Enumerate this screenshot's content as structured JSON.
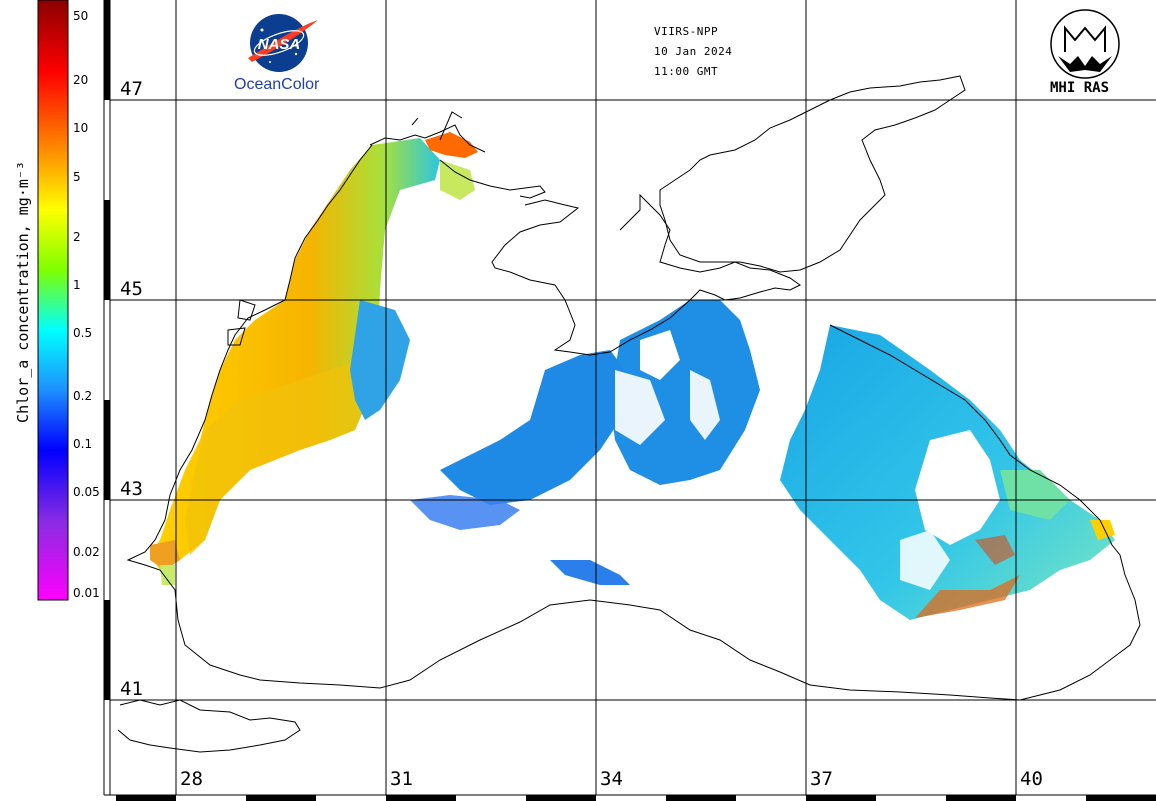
{
  "header": {
    "satellite": "VIIRS-NPP",
    "date": "10 Jan 2024",
    "time": "11:00 GMT"
  },
  "logos": {
    "nasa_wordmark": "NASA",
    "left": "OceanColor",
    "right": "MHI RAS"
  },
  "colorbar": {
    "title": "Chlor_a concentration, mg·m⁻³",
    "ticks": [
      "50",
      "20",
      "10",
      "5",
      "2",
      "1",
      "0.5",
      "0.2",
      "0.1",
      "0.05",
      "0.02",
      "0.01"
    ],
    "colors": [
      "#8b0000",
      "#ff0000",
      "#ff8c00",
      "#ffff00",
      "#7fff00",
      "#00ffff",
      "#1e90ff",
      "#0000ff",
      "#8a2be2",
      "#ff00ff"
    ]
  },
  "grid": {
    "latitudes": [
      "47",
      "45",
      "43",
      "41"
    ],
    "longitudes": [
      "28",
      "31",
      "34",
      "37",
      "40"
    ]
  },
  "map": {
    "land_color": "#ffffff",
    "coast_color": "#000000",
    "bloom_colors": {
      "high": "#ff7a00",
      "medium": "#ffd200",
      "low": "#3fd4c8",
      "open_sea": "#1e8fe6"
    }
  }
}
